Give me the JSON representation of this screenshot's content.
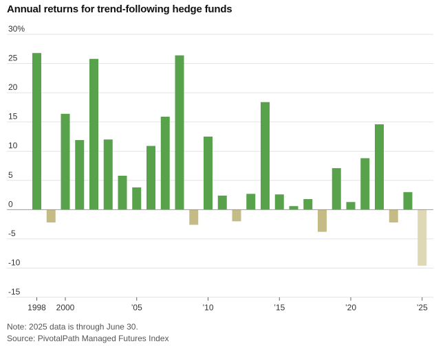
{
  "title": "Annual returns for trend-following hedge funds",
  "note": "Note: 2025 data is through June 30.",
  "source": "Source: PivotalPath Managed Futures Index",
  "colors": {
    "positive": "#58a24c",
    "negative": "#c5bb87",
    "partial": "#ded8b4",
    "grid": "#e2e2e2",
    "zero": "#999999"
  },
  "chart_data": {
    "type": "bar",
    "title": "Annual returns for trend-following hedge funds",
    "xlabel": "",
    "ylabel": "",
    "ylim": [
      -15,
      30
    ],
    "grid": true,
    "y_ticks": [
      30,
      25,
      20,
      15,
      10,
      5,
      0,
      -5,
      -10,
      -15
    ],
    "y_tick_labels": [
      "30%",
      "25",
      "20",
      "15",
      "10",
      "5",
      "0",
      "-5",
      "-10",
      "-15"
    ],
    "x_tick_labels": [
      {
        "year": 1998,
        "label": "1998"
      },
      {
        "year": 2000,
        "label": "2000"
      },
      {
        "year": 2005,
        "label": "’05"
      },
      {
        "year": 2010,
        "label": "’10"
      },
      {
        "year": 2015,
        "label": "’15"
      },
      {
        "year": 2020,
        "label": "’20"
      },
      {
        "year": 2025,
        "label": "’25"
      }
    ],
    "categories": [
      1998,
      1999,
      2000,
      2001,
      2002,
      2003,
      2004,
      2005,
      2006,
      2007,
      2008,
      2009,
      2010,
      2011,
      2012,
      2013,
      2014,
      2015,
      2016,
      2017,
      2018,
      2019,
      2020,
      2021,
      2022,
      2023,
      2024,
      2025
    ],
    "values": [
      26.8,
      -2.2,
      16.4,
      11.9,
      25.8,
      12.0,
      5.8,
      3.8,
      10.9,
      15.9,
      26.4,
      -2.6,
      12.5,
      2.4,
      -2.0,
      2.7,
      18.4,
      2.6,
      0.6,
      1.8,
      -3.8,
      7.1,
      1.3,
      8.8,
      14.6,
      -2.2,
      3.0,
      -9.6
    ],
    "partial_year": 2025
  }
}
